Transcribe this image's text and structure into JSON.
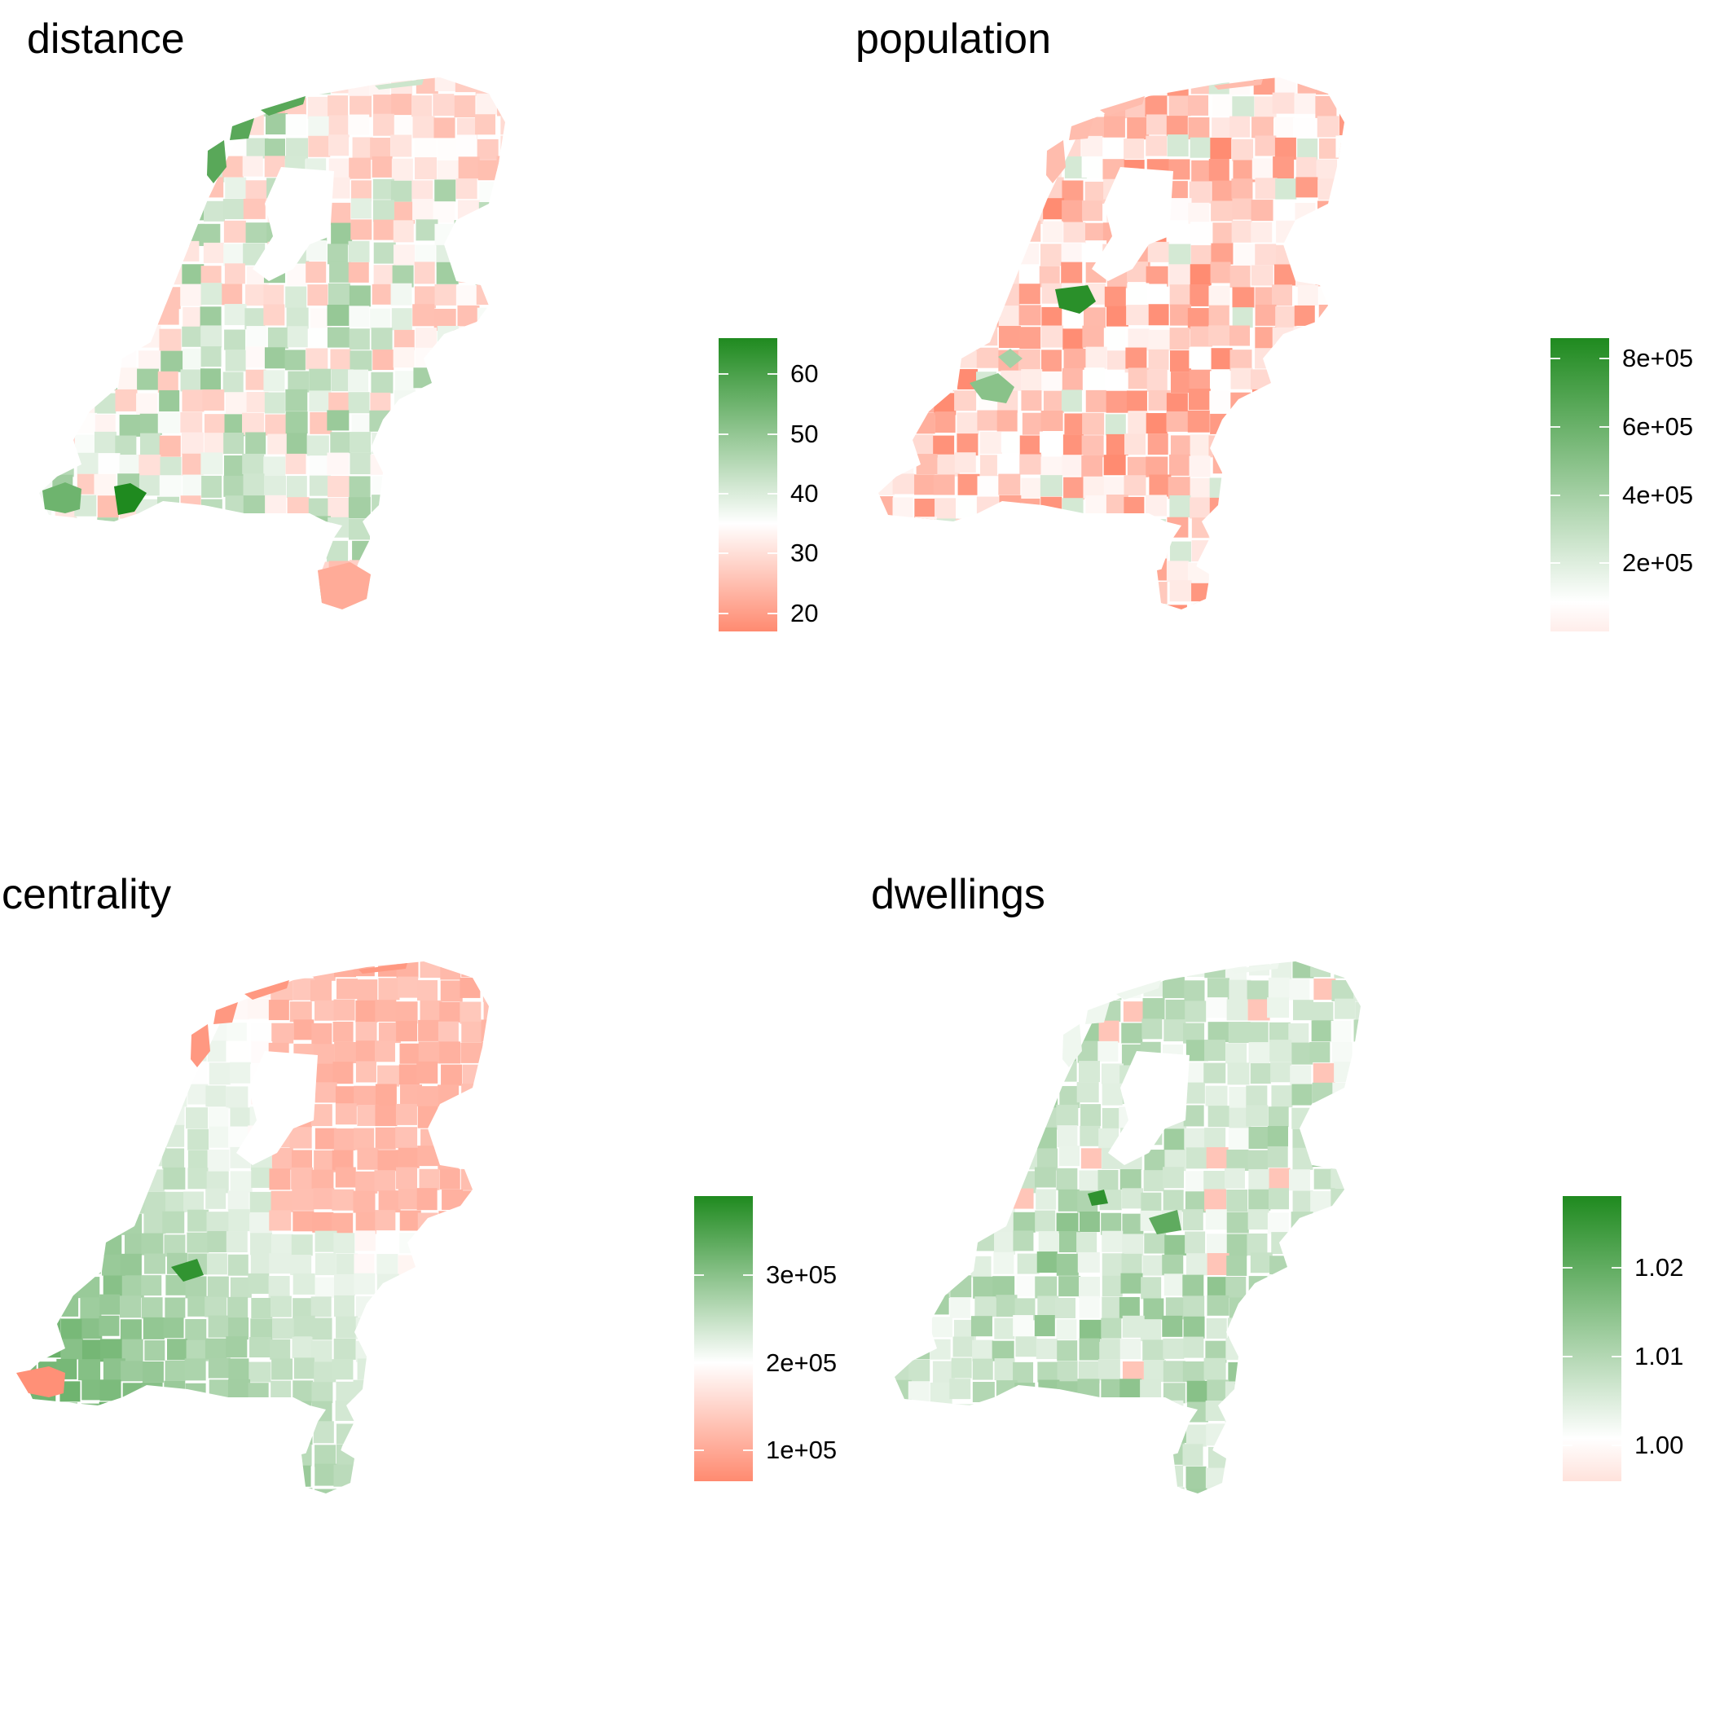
{
  "colors": {
    "low": "#ff8a70",
    "mid": "#ffffff",
    "high": "#1f8a1f"
  },
  "panels": [
    {
      "id": "distance",
      "title": "distance",
      "legend": {
        "ticks": [
          "60",
          "50",
          "40",
          "30",
          "20"
        ],
        "range": [
          17,
          66
        ],
        "tick_values": [
          60,
          50,
          40,
          30,
          20
        ],
        "mid_value": 35
      },
      "map_tint": "mixed"
    },
    {
      "id": "population",
      "title": "population",
      "legend": {
        "ticks": [
          "8e+05",
          "6e+05",
          "4e+05",
          "2e+05"
        ],
        "range": [
          0,
          860000
        ],
        "tick_values": [
          800000,
          600000,
          400000,
          200000
        ],
        "mid_value": 60000
      },
      "map_tint": "pale"
    },
    {
      "id": "centrality",
      "title": "centrality",
      "legend": {
        "ticks": [
          "3e+05",
          "2e+05",
          "1e+05"
        ],
        "range": [
          65000,
          390000
        ],
        "tick_values": [
          300000,
          200000,
          100000
        ],
        "mid_value": 200000
      },
      "map_tint": "gradient"
    },
    {
      "id": "dwellings",
      "title": "dwellings",
      "legend": {
        "ticks": [
          "1.02",
          "1.01",
          "1.00"
        ],
        "range": [
          0.996,
          1.028
        ],
        "tick_values": [
          1.02,
          1.01,
          1.0
        ],
        "mid_value": 1.0
      },
      "map_tint": "green"
    }
  ]
}
